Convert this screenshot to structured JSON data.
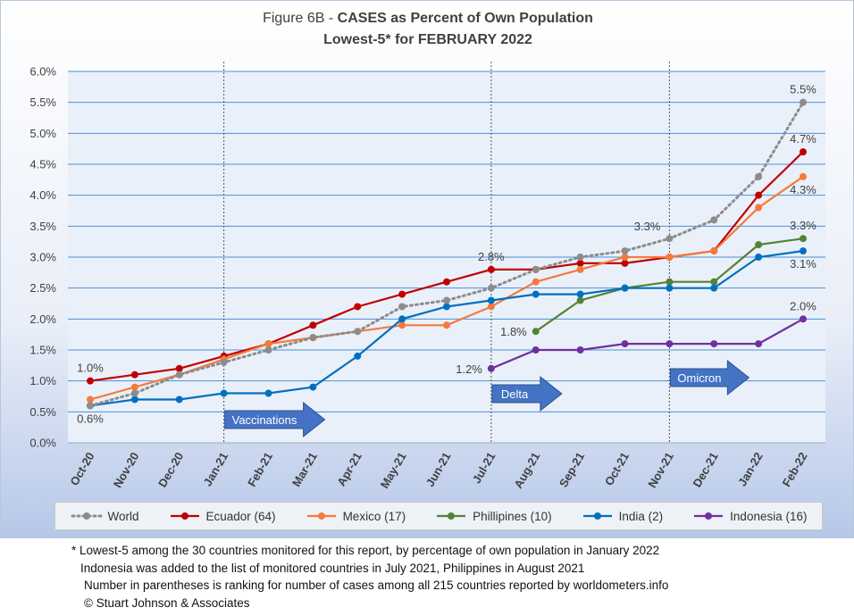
{
  "title": {
    "prefix": "Figure 6B - ",
    "bold": "CASES as Percent of Own Population",
    "line2": "Lowest-5* for FEBRUARY 2022"
  },
  "chart_data": {
    "type": "line",
    "categories": [
      "Oct-20",
      "Nov-20",
      "Dec-20",
      "Jan-21",
      "Feb-21",
      "Mar-21",
      "Apr-21",
      "May-21",
      "Jun-21",
      "Jul-21",
      "Aug-21",
      "Sep-21",
      "Oct-21",
      "Nov-21",
      "Dec-21",
      "Jan-22",
      "Feb-22"
    ],
    "ylim": [
      0,
      6
    ],
    "yticks": [
      "0.0%",
      "0.5%",
      "1.0%",
      "1.5%",
      "2.0%",
      "2.5%",
      "3.0%",
      "3.5%",
      "4.0%",
      "4.5%",
      "5.0%",
      "5.5%",
      "6.0%"
    ],
    "grid": true,
    "legend_position": "bottom",
    "series": [
      {
        "name": "World",
        "color": "#8c8c8c",
        "dashed": true,
        "values": [
          0.6,
          0.8,
          1.1,
          1.3,
          1.5,
          1.7,
          1.8,
          2.2,
          2.3,
          2.5,
          2.8,
          3.0,
          3.1,
          3.3,
          3.6,
          4.3,
          5.5
        ]
      },
      {
        "name": "Ecuador (64)",
        "color": "#c00000",
        "dashed": false,
        "values": [
          1.0,
          1.1,
          1.2,
          1.4,
          1.6,
          1.9,
          2.2,
          2.4,
          2.6,
          2.8,
          2.8,
          2.9,
          2.9,
          3.0,
          3.1,
          4.0,
          4.7
        ]
      },
      {
        "name": "Mexico (17)",
        "color": "#f57a3c",
        "dashed": false,
        "values": [
          0.7,
          0.9,
          1.1,
          1.35,
          1.6,
          1.7,
          1.8,
          1.9,
          1.9,
          2.2,
          2.6,
          2.8,
          3.0,
          3.0,
          3.1,
          3.8,
          4.3
        ]
      },
      {
        "name": "Phillipines (10)",
        "color": "#548235",
        "dashed": false,
        "values": [
          null,
          null,
          null,
          null,
          null,
          null,
          null,
          null,
          null,
          null,
          1.8,
          2.3,
          2.5,
          2.6,
          2.6,
          3.2,
          3.3
        ]
      },
      {
        "name": "India (2)",
        "color": "#0070c0",
        "dashed": false,
        "values": [
          0.6,
          0.7,
          0.7,
          0.8,
          0.8,
          0.9,
          1.4,
          2.0,
          2.2,
          2.3,
          2.4,
          2.4,
          2.5,
          2.5,
          2.5,
          3.0,
          3.1
        ]
      },
      {
        "name": "Indonesia (16)",
        "color": "#7030a0",
        "dashed": false,
        "values": [
          null,
          null,
          null,
          null,
          null,
          null,
          null,
          null,
          null,
          1.2,
          1.5,
          1.5,
          1.6,
          1.6,
          1.6,
          1.6,
          2.0
        ]
      }
    ],
    "annotations": [
      {
        "text": "1.0%",
        "x": "Oct-20",
        "y": 1.0,
        "anchor": "above"
      },
      {
        "text": "0.6%",
        "x": "Oct-20",
        "y": 0.6,
        "anchor": "below"
      },
      {
        "text": "2.8%",
        "x": "Jul-21",
        "y": 2.8,
        "anchor": "above"
      },
      {
        "text": "1.2%",
        "x": "Jul-21",
        "y": 1.2,
        "anchor": "left"
      },
      {
        "text": "1.8%",
        "x": "Aug-21",
        "y": 1.8,
        "anchor": "left"
      },
      {
        "text": "3.3%",
        "x": "Nov-21",
        "y": 3.3,
        "anchor": "above-left"
      },
      {
        "text": "5.5%",
        "x": "Feb-22",
        "y": 5.5,
        "anchor": "above"
      },
      {
        "text": "4.7%",
        "x": "Feb-22",
        "y": 4.7,
        "anchor": "above"
      },
      {
        "text": "4.3%",
        "x": "Feb-22",
        "y": 4.3,
        "anchor": "below"
      },
      {
        "text": "3.3%",
        "x": "Feb-22",
        "y": 3.3,
        "anchor": "above"
      },
      {
        "text": "3.1%",
        "x": "Feb-22",
        "y": 3.1,
        "anchor": "below"
      },
      {
        "text": "2.0%",
        "x": "Feb-22",
        "y": 2.0,
        "anchor": "above"
      }
    ],
    "markers": [
      {
        "text": "Vaccinations",
        "x": "Jan-21"
      },
      {
        "text": "Delta",
        "x": "Jul-21"
      },
      {
        "text": "Omicron",
        "x": "Nov-21"
      }
    ]
  },
  "colors": {
    "arrow_fill": "#4472c4",
    "arrow_text": "#ffffff",
    "grid": "#4a90d9"
  },
  "footnotes": [
    "* Lowest-5 among the 30 countries monitored for this report, by percentage of own population in January 2022",
    "Indonesia was added to the list of monitored countries in July 2021, Philippines in August 2021",
    "Number in parentheses is ranking for number of cases among all 215 countries reported by worldometers.info",
    "© Stuart Johnson & Associates"
  ]
}
